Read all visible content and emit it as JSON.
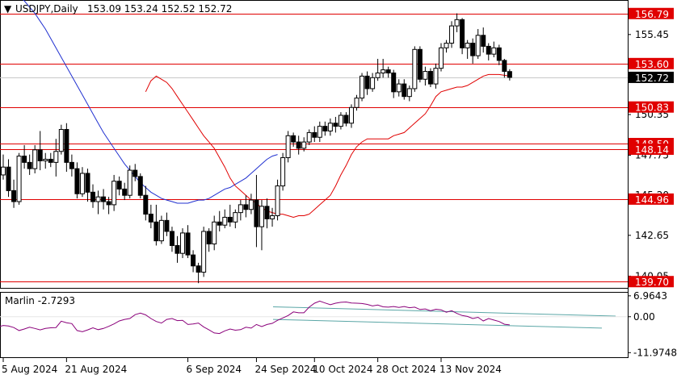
{
  "colors": {
    "background": "#ffffff",
    "candle": "#000000",
    "level_line": "#e00000",
    "level_label_bg": "#e00000",
    "sma_red": "#e00000",
    "sma_blue": "#2030d0",
    "osc_line": "#8a007a",
    "channel_line": "#5aa6a6",
    "current_price_bg": "#000000"
  },
  "header": {
    "symbol_tf": "USDJPY,Daily",
    "ohlc": "153.09 153.24 152.52 152.72"
  },
  "chart_data": [
    {
      "type": "candlestick",
      "title": "USDJPY,Daily 153.09 153.24 152.52 152.72",
      "ylim": [
        139.3,
        157.6
      ],
      "price_ticks": [
        "155.45",
        "150.35",
        "147.75",
        "145.20",
        "142.65",
        "140.05"
      ],
      "x_labels": [
        "5 Aug 2024",
        "21 Aug 2024",
        "6 Sep 2024",
        "24 Sep 2024",
        "10 Oct 2024",
        "28 Oct 2024",
        "13 Nov 2024"
      ],
      "levels": [
        {
          "label": "156.79",
          "value": 156.79
        },
        {
          "label": "153.60",
          "value": 153.6
        },
        {
          "label": "150.83",
          "value": 150.83
        },
        {
          "label": "148.50",
          "value": 148.5
        },
        {
          "label": "148.14",
          "value": 148.14
        },
        {
          "label": "144.96",
          "value": 144.96
        },
        {
          "label": "139.70",
          "value": 139.7
        }
      ],
      "current_price": {
        "label": "152.72",
        "value": 152.72
      },
      "candles": [
        [
          146.5,
          147.8,
          146.2,
          147.0
        ],
        [
          147.0,
          147.5,
          145.1,
          145.5
        ],
        [
          145.5,
          146.2,
          144.4,
          144.8
        ],
        [
          144.8,
          147.9,
          144.6,
          147.7
        ],
        [
          147.7,
          148.4,
          146.9,
          147.3
        ],
        [
          147.3,
          147.8,
          146.5,
          146.9
        ],
        [
          146.9,
          148.4,
          146.6,
          148.1
        ],
        [
          148.1,
          149.3,
          146.8,
          147.4
        ],
        [
          147.4,
          147.9,
          146.9,
          147.5
        ],
        [
          147.5,
          147.9,
          147.0,
          147.3
        ],
        [
          147.3,
          148.8,
          146.4,
          148.0
        ],
        [
          148.0,
          149.7,
          147.8,
          149.4
        ],
        [
          149.4,
          149.8,
          146.7,
          147.3
        ],
        [
          147.3,
          147.8,
          146.4,
          146.9
        ],
        [
          146.9,
          147.3,
          145.0,
          145.3
        ],
        [
          145.3,
          147.0,
          145.1,
          146.6
        ],
        [
          146.6,
          146.9,
          144.8,
          145.4
        ],
        [
          145.4,
          145.9,
          144.4,
          144.8
        ],
        [
          144.8,
          145.5,
          144.0,
          145.1
        ],
        [
          145.1,
          145.6,
          144.3,
          144.8
        ],
        [
          144.8,
          145.1,
          144.0,
          144.6
        ],
        [
          144.6,
          146.5,
          144.2,
          146.1
        ],
        [
          146.1,
          146.4,
          145.2,
          145.6
        ],
        [
          145.6,
          146.0,
          144.9,
          145.2
        ],
        [
          145.2,
          147.1,
          145.0,
          146.8
        ],
        [
          146.8,
          147.2,
          146.1,
          146.4
        ],
        [
          146.4,
          146.6,
          145.0,
          145.2
        ],
        [
          145.2,
          145.8,
          143.6,
          144.0
        ],
        [
          144.0,
          144.6,
          143.1,
          143.5
        ],
        [
          143.5,
          144.6,
          142.0,
          142.3
        ],
        [
          142.3,
          143.9,
          142.1,
          143.6
        ],
        [
          143.6,
          144.1,
          142.6,
          142.9
        ],
        [
          142.9,
          143.2,
          141.6,
          142.0
        ],
        [
          142.0,
          142.6,
          140.9,
          141.5
        ],
        [
          141.5,
          143.1,
          141.2,
          142.8
        ],
        [
          142.8,
          143.3,
          141.2,
          141.4
        ],
        [
          141.4,
          141.7,
          140.3,
          140.7
        ],
        [
          140.7,
          140.9,
          139.6,
          140.3
        ],
        [
          140.3,
          143.2,
          140.0,
          142.9
        ],
        [
          142.9,
          143.1,
          141.6,
          142.1
        ],
        [
          142.1,
          143.9,
          141.7,
          143.5
        ],
        [
          143.5,
          144.2,
          142.9,
          143.3
        ],
        [
          143.3,
          144.3,
          143.1,
          143.8
        ],
        [
          143.8,
          144.6,
          143.2,
          143.5
        ],
        [
          143.5,
          144.3,
          143.1,
          144.1
        ],
        [
          144.1,
          144.9,
          143.6,
          144.6
        ],
        [
          144.6,
          145.2,
          143.8,
          144.3
        ],
        [
          144.3,
          145.3,
          144.0,
          144.9
        ],
        [
          144.9,
          146.5,
          141.9,
          143.2
        ],
        [
          143.2,
          144.9,
          141.7,
          144.5
        ],
        [
          144.5,
          145.0,
          143.1,
          143.7
        ],
        [
          143.7,
          144.4,
          143.2,
          143.9
        ],
        [
          143.9,
          146.2,
          143.6,
          145.8
        ],
        [
          145.8,
          147.9,
          145.5,
          147.6
        ],
        [
          147.6,
          149.3,
          147.3,
          149.0
        ],
        [
          149.0,
          149.2,
          148.3,
          148.6
        ],
        [
          148.6,
          149.0,
          147.8,
          148.2
        ],
        [
          148.2,
          148.9,
          148.0,
          148.6
        ],
        [
          148.6,
          149.4,
          148.4,
          149.2
        ],
        [
          149.2,
          149.6,
          148.6,
          148.9
        ],
        [
          148.9,
          149.9,
          148.6,
          149.6
        ],
        [
          149.6,
          149.9,
          149.0,
          149.3
        ],
        [
          149.3,
          150.1,
          149.0,
          149.8
        ],
        [
          149.8,
          150.2,
          149.2,
          149.6
        ],
        [
          149.6,
          150.5,
          149.4,
          150.3
        ],
        [
          150.3,
          150.5,
          149.6,
          149.8
        ],
        [
          149.8,
          151.0,
          149.5,
          150.8
        ],
        [
          150.8,
          151.6,
          150.6,
          151.4
        ],
        [
          151.4,
          153.0,
          151.2,
          152.8
        ],
        [
          152.8,
          153.1,
          151.6,
          152.0
        ],
        [
          152.0,
          153.0,
          151.8,
          152.7
        ],
        [
          152.7,
          153.9,
          152.5,
          153.0
        ],
        [
          153.0,
          153.9,
          152.7,
          153.2
        ],
        [
          153.2,
          153.4,
          152.7,
          153.0
        ],
        [
          153.0,
          153.2,
          151.4,
          151.8
        ],
        [
          151.8,
          152.6,
          151.5,
          152.3
        ],
        [
          152.3,
          152.6,
          151.3,
          151.5
        ],
        [
          151.5,
          152.2,
          151.2,
          152.0
        ],
        [
          152.0,
          154.7,
          151.8,
          154.5
        ],
        [
          154.5,
          154.7,
          152.4,
          152.6
        ],
        [
          152.6,
          153.4,
          152.2,
          153.1
        ],
        [
          153.1,
          153.3,
          152.1,
          152.3
        ],
        [
          152.3,
          153.6,
          152.0,
          153.3
        ],
        [
          153.3,
          154.9,
          153.1,
          154.6
        ],
        [
          154.6,
          155.1,
          154.3,
          154.9
        ],
        [
          154.9,
          156.3,
          154.6,
          156.0
        ],
        [
          156.0,
          156.8,
          155.6,
          156.4
        ],
        [
          156.4,
          156.5,
          154.2,
          154.6
        ],
        [
          154.6,
          155.1,
          153.9,
          154.9
        ],
        [
          154.9,
          155.2,
          153.6,
          154.1
        ],
        [
          154.1,
          155.8,
          153.9,
          155.4
        ],
        [
          155.4,
          155.9,
          154.3,
          154.7
        ],
        [
          154.7,
          154.9,
          153.8,
          154.2
        ],
        [
          154.2,
          155.0,
          154.0,
          154.6
        ],
        [
          154.6,
          154.8,
          153.5,
          153.8
        ],
        [
          153.8,
          153.9,
          152.7,
          153.1
        ],
        [
          153.09,
          153.24,
          152.52,
          152.72
        ]
      ],
      "sma_red": [
        151.8,
        152.5,
        152.8,
        152.6,
        152.4,
        152.0,
        151.5,
        151.0,
        150.5,
        150.0,
        149.5,
        149.0,
        148.6,
        148.2,
        147.6,
        147.0,
        146.3,
        145.8,
        145.5,
        145.2,
        144.9,
        144.7,
        144.4,
        144.2,
        144.1,
        144.0,
        144.0,
        143.9,
        143.8,
        143.9,
        143.9,
        144.0,
        144.3,
        144.6,
        144.9,
        145.2,
        145.8,
        146.5,
        147.1,
        147.8,
        148.3,
        148.6,
        148.8,
        148.8,
        148.8,
        148.8,
        148.8,
        149.0,
        149.1,
        149.2,
        149.5,
        149.8,
        150.1,
        150.4,
        150.9,
        151.5,
        151.8,
        151.9,
        152.0,
        152.1,
        152.1,
        152.2,
        152.4,
        152.6,
        152.8,
        152.9,
        152.9,
        152.9,
        152.85,
        152.8
      ],
      "sma_blue": [
        158.6,
        158.5,
        158.2,
        157.9,
        157.6,
        157.2,
        156.8,
        156.3,
        155.8,
        155.2,
        154.6,
        154.0,
        153.4,
        152.8,
        152.2,
        151.6,
        151.0,
        150.4,
        149.8,
        149.2,
        148.7,
        148.2,
        147.7,
        147.2,
        146.8,
        146.4,
        146.0,
        145.7,
        145.4,
        145.2,
        145.0,
        144.9,
        144.8,
        144.7,
        144.7,
        144.7,
        144.8,
        144.9,
        144.9,
        145.0,
        145.2,
        145.4,
        145.6,
        145.7,
        145.9,
        146.1,
        146.3,
        146.6,
        146.9,
        147.2,
        147.5,
        147.7,
        147.8
      ]
    },
    {
      "type": "line",
      "title": "Marlin -2.7293",
      "ylim": [
        -13.5,
        8.0
      ],
      "y_ticks": [
        "6.9643",
        "0.00",
        "-11.9748"
      ],
      "values": [
        -3.4,
        -2.9,
        -3.1,
        -3.6,
        -4.6,
        -4.1,
        -3.5,
        -3.9,
        -4.4,
        -3.9,
        -3.7,
        -3.6,
        -1.5,
        -2.0,
        -2.3,
        -4.6,
        -5.0,
        -4.4,
        -3.7,
        -4.3,
        -3.9,
        -3.2,
        -2.4,
        -1.4,
        -0.9,
        -0.6,
        0.7,
        1.2,
        0.6,
        -0.6,
        -1.6,
        -2.1,
        -0.9,
        -0.6,
        -1.3,
        -1.2,
        -2.6,
        -2.4,
        -2.1,
        -3.4,
        -4.4,
        -5.4,
        -5.6,
        -4.7,
        -4.1,
        -4.5,
        -4.3,
        -3.5,
        -3.8,
        -2.6,
        -3.3,
        -2.6,
        -2.2,
        -1.2,
        -0.4,
        0.4,
        1.6,
        1.3,
        1.3,
        3.2,
        4.5,
        5.2,
        4.6,
        4.0,
        4.5,
        4.8,
        4.9,
        4.6,
        4.5,
        4.4,
        4.1,
        3.6,
        3.9,
        3.3,
        3.2,
        3.4,
        3.1,
        3.4,
        3.0,
        3.2,
        2.4,
        2.6,
        2.0,
        2.5,
        2.3,
        1.5,
        2.0,
        1.1,
        0.4,
        0.1,
        -0.6,
        -0.2,
        -1.4,
        -0.6,
        -1.1,
        -1.6,
        -2.5,
        -2.7293
      ],
      "channel": [
        {
          "from": 3.3,
          "to": 0.2
        },
        {
          "from": -0.9,
          "to": -3.8
        }
      ],
      "x_labels": [
        "5 Aug 2024",
        "21 Aug 2024",
        "6 Sep 2024",
        "24 Sep 2024",
        "10 Oct 2024",
        "28 Oct 2024",
        "13 Nov 2024"
      ]
    }
  ]
}
